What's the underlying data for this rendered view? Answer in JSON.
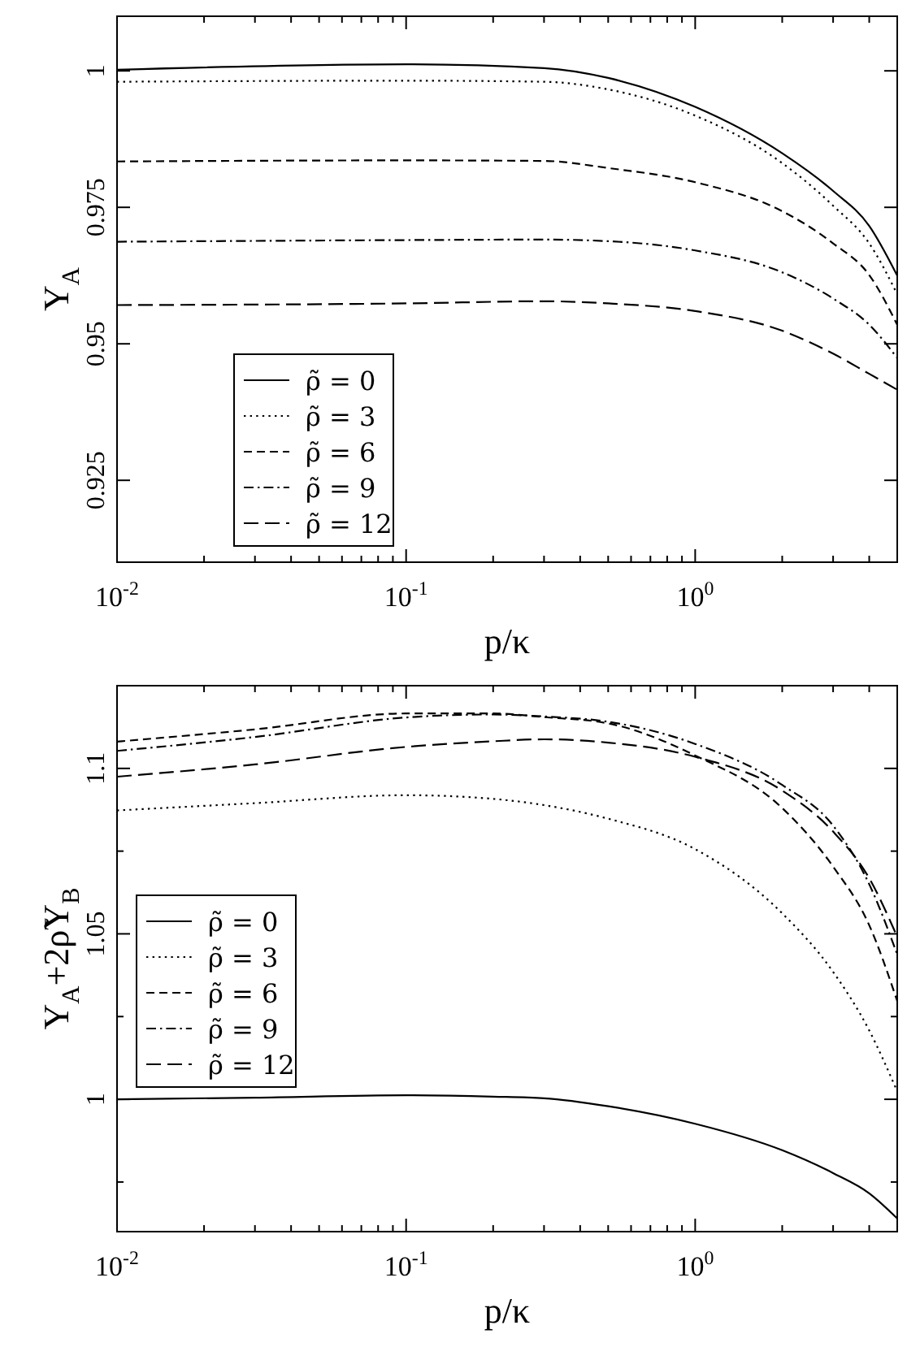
{
  "chart_data": [
    {
      "type": "line",
      "xlabel": "p/κ",
      "ylabel": "Y$_{A}$",
      "log": "x",
      "legend": "bottom left",
      "grid": false,
      "x": [
        0.01,
        0.1,
        0.3,
        0.5,
        1,
        2,
        3,
        4,
        5
      ],
      "xlim": [
        0.01,
        5
      ],
      "ylim": [
        0.91,
        1.01
      ],
      "xticks": [
        {
          "value": 0.01,
          "label": "10$^{-2}$"
        },
        {
          "value": 0.02,
          "label": null
        },
        {
          "value": 0.03,
          "label": null
        },
        {
          "value": 0.04,
          "label": null
        },
        {
          "value": 0.05,
          "label": null
        },
        {
          "value": 0.06,
          "label": null
        },
        {
          "value": 0.07,
          "label": null
        },
        {
          "value": 0.08,
          "label": null
        },
        {
          "value": 0.09,
          "label": null
        },
        {
          "value": 0.1,
          "label": "10$^{-1}$"
        },
        {
          "value": 0.2,
          "label": null
        },
        {
          "value": 0.3,
          "label": null
        },
        {
          "value": 0.4,
          "label": null
        },
        {
          "value": 0.5,
          "label": null
        },
        {
          "value": 0.6,
          "label": null
        },
        {
          "value": 0.7,
          "label": null
        },
        {
          "value": 0.8,
          "label": null
        },
        {
          "value": 0.9,
          "label": null
        },
        {
          "value": 1,
          "label": "10$^{0}$"
        },
        {
          "value": 2,
          "label": null
        },
        {
          "value": 3,
          "label": null
        },
        {
          "value": 4,
          "label": null
        },
        {
          "value": 5,
          "label": null
        }
      ],
      "yticks": [
        0.925,
        0.95,
        0.975,
        1
      ],
      "series": [
        {
          "name": "ρ̃ = 0",
          "color": "#000000",
          "line_style": "solid",
          "values": [
            1.0002,
            1.0012,
            1.0005,
            0.9987,
            0.9934,
            0.9849,
            0.978,
            0.9716,
            0.9625
          ]
        },
        {
          "name": "ρ̃ = 3",
          "color": "#000000",
          "line_style": "dotted",
          "values": [
            0.998,
            0.9982,
            0.998,
            0.9966,
            0.9918,
            0.9831,
            0.9753,
            0.9684,
            0.9591
          ]
        },
        {
          "name": "ρ̃ = 6",
          "color": "#000000",
          "line_style": "dashed",
          "values": [
            0.9834,
            0.9836,
            0.9835,
            0.9822,
            0.9796,
            0.9743,
            0.9684,
            0.9626,
            0.9535
          ]
        },
        {
          "name": "ρ̃ = 9",
          "color": "#000000",
          "line_style": "dashdot",
          "values": [
            0.9687,
            0.969,
            0.9691,
            0.9688,
            0.9671,
            0.9631,
            0.9583,
            0.9535,
            0.9474
          ]
        },
        {
          "name": "ρ̃ = 12",
          "color": "#000000",
          "line_style": "longdash",
          "values": [
            0.9571,
            0.9574,
            0.9578,
            0.9574,
            0.956,
            0.9524,
            0.9482,
            0.9445,
            0.9416
          ]
        }
      ]
    },
    {
      "type": "line",
      "xlabel": "p/κ",
      "ylabel": "Y$_{A}$+2ρ̃Y$_{B}$",
      "log": "x",
      "legend": "left",
      "grid": false,
      "x": [
        0.01,
        0.03,
        0.1,
        0.2,
        0.3,
        0.5,
        1,
        2,
        3,
        4,
        5
      ],
      "xlim": [
        0.01,
        5
      ],
      "ylim": [
        0.96,
        1.125
      ],
      "xticks": [
        {
          "value": 0.01,
          "label": "10$^{-2}$"
        },
        {
          "value": 0.02,
          "label": null
        },
        {
          "value": 0.03,
          "label": null
        },
        {
          "value": 0.04,
          "label": null
        },
        {
          "value": 0.05,
          "label": null
        },
        {
          "value": 0.06,
          "label": null
        },
        {
          "value": 0.07,
          "label": null
        },
        {
          "value": 0.08,
          "label": null
        },
        {
          "value": 0.09,
          "label": null
        },
        {
          "value": 0.1,
          "label": "10$^{-1}$"
        },
        {
          "value": 0.2,
          "label": null
        },
        {
          "value": 0.3,
          "label": null
        },
        {
          "value": 0.4,
          "label": null
        },
        {
          "value": 0.5,
          "label": null
        },
        {
          "value": 0.6,
          "label": null
        },
        {
          "value": 0.7,
          "label": null
        },
        {
          "value": 0.8,
          "label": null
        },
        {
          "value": 0.9,
          "label": null
        },
        {
          "value": 1,
          "label": "10$^{0}$"
        },
        {
          "value": 2,
          "label": null
        },
        {
          "value": 3,
          "label": null
        },
        {
          "value": 4,
          "label": null
        },
        {
          "value": 5,
          "label": null
        }
      ],
      "yticks": [
        {
          "value": 0.975,
          "label": null
        },
        1,
        {
          "value": 1.025,
          "label": null
        },
        1.05,
        {
          "value": 1.075,
          "label": null
        },
        1.1
      ],
      "series": [
        {
          "name": "ρ̃ = 0",
          "color": "#000000",
          "line_style": "solid",
          "values": [
            1.0,
            1.0005,
            1.0012,
            1.0008,
            1.0003,
            0.9979,
            0.9926,
            0.9846,
            0.9777,
            0.9716,
            0.964
          ]
        },
        {
          "name": "ρ̃ = 3",
          "color": "#000000",
          "line_style": "dotted",
          "values": [
            1.0873,
            1.0895,
            1.0919,
            1.0908,
            1.0889,
            1.0848,
            1.0756,
            1.0562,
            1.0385,
            1.0208,
            1.0024
          ]
        },
        {
          "name": "ρ̃ = 6",
          "color": "#000000",
          "line_style": "dashed",
          "values": [
            1.1081,
            1.1118,
            1.1166,
            1.1166,
            1.1155,
            1.1136,
            1.1039,
            1.088,
            1.0703,
            1.0526,
            1.0297
          ]
        },
        {
          "name": "ρ̃ = 9",
          "color": "#000000",
          "line_style": "dashdot",
          "values": [
            1.1053,
            1.1095,
            1.1154,
            1.1163,
            1.1157,
            1.1141,
            1.1074,
            1.095,
            1.0827,
            1.065,
            1.0438
          ]
        },
        {
          "name": "ρ̃ = 12",
          "color": "#000000",
          "line_style": "longdash",
          "values": [
            1.0975,
            1.1012,
            1.1065,
            1.1082,
            1.1088,
            1.1078,
            1.1035,
            1.0933,
            1.0809,
            1.0668,
            1.0491
          ]
        }
      ]
    }
  ]
}
